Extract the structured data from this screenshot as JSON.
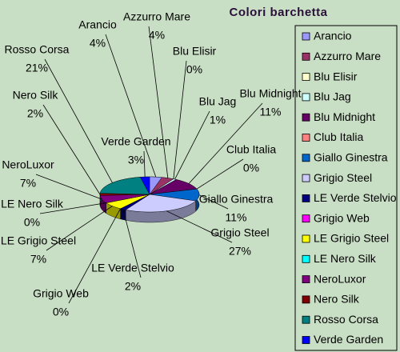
{
  "chart_data": {
    "type": "pie",
    "title": "Colori barchetta",
    "categories": [
      "Arancio",
      "Azzurro Mare",
      "Blu Elisir",
      "Blu Jag",
      "Blu Midnight",
      "Club Italia",
      "Giallo Ginestra",
      "Grigio Steel",
      "LE Verde Stelvio",
      "Grigio Web",
      "LE Grigio Steel",
      "LE Nero Silk",
      "NeroLuxor",
      "Nero Silk",
      "Rosso Corsa",
      "Verde Garden"
    ],
    "values": [
      4,
      4,
      0,
      1,
      11,
      0,
      11,
      27,
      2,
      0,
      7,
      0,
      7,
      2,
      21,
      3
    ],
    "value_labels": [
      "4%",
      "4%",
      "0%",
      "1%",
      "11%",
      "0%",
      "11%",
      "27%",
      "2%",
      "0%",
      "7%",
      "0%",
      "7%",
      "2%",
      "21%",
      "3%"
    ],
    "colors": [
      "#9999ff",
      "#993366",
      "#ffffcc",
      "#ccffff",
      "#660066",
      "#ff8080",
      "#0066cc",
      "#ccccff",
      "#000080",
      "#ff00ff",
      "#ffff00",
      "#00ffff",
      "#800080",
      "#800000",
      "#008080",
      "#0000ff"
    ],
    "legend": "right"
  }
}
